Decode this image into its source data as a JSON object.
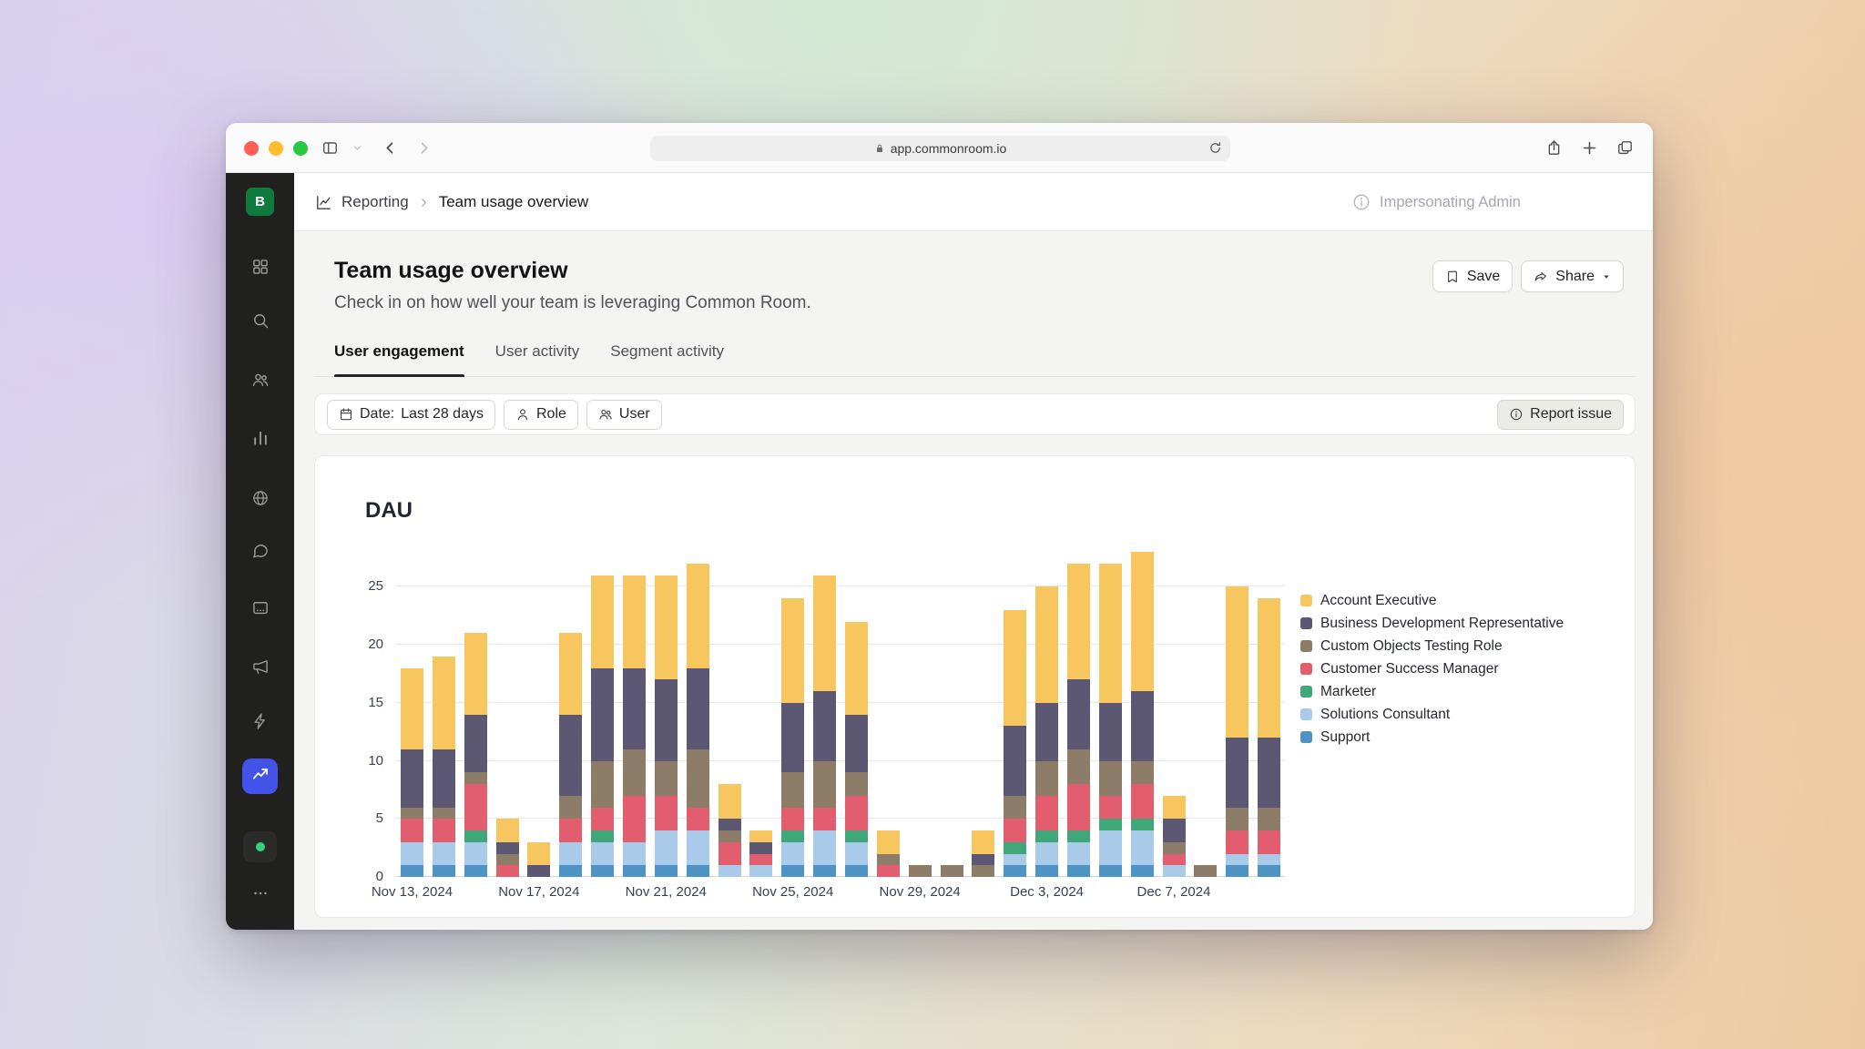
{
  "browser": {
    "url": "app.commonroom.io"
  },
  "header": {
    "breadcrumb_section": "Reporting",
    "breadcrumb_page": "Team usage overview",
    "impersonation": "Impersonating Admin"
  },
  "page": {
    "title": "Team usage overview",
    "subtitle": "Check in on how well your team is leveraging Common Room.",
    "save": "Save",
    "share": "Share"
  },
  "tabs": [
    {
      "label": "User engagement",
      "active": true
    },
    {
      "label": "User activity",
      "active": false
    },
    {
      "label": "Segment activity",
      "active": false
    }
  ],
  "filters": {
    "date_prefix": "Date:",
    "date_value": "Last 28 days",
    "role": "Role",
    "user": "User",
    "report_issue": "Report issue"
  },
  "sidebar": {
    "logo_letter": "B",
    "items": [
      {
        "name": "dashboard",
        "icon": "grid-icon",
        "active": false
      },
      {
        "name": "search",
        "icon": "search-icon",
        "active": false
      },
      {
        "name": "contacts",
        "icon": "contacts-icon",
        "active": false
      },
      {
        "name": "analytics",
        "icon": "bar-chart-icon",
        "active": false
      },
      {
        "name": "community",
        "icon": "globe-icon",
        "active": false
      },
      {
        "name": "conversations",
        "icon": "chat-icon",
        "active": false
      },
      {
        "name": "board",
        "icon": "board-icon",
        "active": false
      },
      {
        "name": "campaigns",
        "icon": "megaphone-icon",
        "active": false
      },
      {
        "name": "automations",
        "icon": "bolt-icon",
        "active": false
      },
      {
        "name": "reporting",
        "icon": "trend-icon",
        "active": true
      }
    ],
    "status_color": "#34d27b"
  },
  "chart_data": {
    "type": "bar",
    "stacked": true,
    "title": "DAU",
    "legend_position": "right",
    "grid": true,
    "ylim": [
      0,
      28
    ],
    "yticks": [
      0,
      5,
      10,
      15,
      20,
      25
    ],
    "x_tick_interval": 4,
    "x_tick_labels": [
      "Nov 13, 2024",
      "Nov 17, 2024",
      "Nov 21, 2024",
      "Nov 25, 2024",
      "Nov 29, 2024",
      "Dec 3, 2024",
      "Dec 7, 2024"
    ],
    "x": [
      "Nov 13",
      "Nov 14",
      "Nov 15",
      "Nov 16",
      "Nov 17",
      "Nov 18",
      "Nov 19",
      "Nov 20",
      "Nov 21",
      "Nov 22",
      "Nov 23",
      "Nov 24",
      "Nov 25",
      "Nov 26",
      "Nov 27",
      "Nov 28",
      "Nov 29",
      "Nov 30",
      "Dec 1",
      "Dec 2",
      "Dec 3",
      "Dec 4",
      "Dec 5",
      "Dec 6",
      "Dec 7",
      "Dec 8",
      "Dec 9",
      "Dec 10"
    ],
    "series": [
      {
        "name": "Account Executive",
        "color": "#F7C65F",
        "values": [
          7,
          8,
          7,
          2,
          2,
          7,
          8,
          8,
          9,
          9,
          3,
          1,
          9,
          10,
          8,
          2,
          0,
          0,
          2,
          10,
          10,
          10,
          12,
          12,
          2,
          0,
          13,
          12
        ]
      },
      {
        "name": "Business Development Representative",
        "color": "#5C5873",
        "values": [
          5,
          5,
          5,
          1,
          1,
          7,
          8,
          7,
          7,
          7,
          1,
          1,
          6,
          6,
          5,
          0,
          0,
          0,
          1,
          6,
          5,
          6,
          5,
          6,
          2,
          0,
          6,
          6
        ]
      },
      {
        "name": "Custom Objects Testing Role",
        "color": "#8C7C68",
        "values": [
          1,
          1,
          1,
          1,
          0,
          2,
          4,
          4,
          3,
          5,
          1,
          0,
          3,
          4,
          2,
          1,
          1,
          1,
          1,
          2,
          3,
          3,
          3,
          2,
          1,
          1,
          2,
          2
        ]
      },
      {
        "name": "Customer Success Manager",
        "color": "#E25D6E",
        "values": [
          2,
          2,
          4,
          1,
          0,
          2,
          2,
          4,
          3,
          2,
          2,
          1,
          2,
          2,
          3,
          1,
          0,
          0,
          0,
          2,
          3,
          4,
          2,
          3,
          1,
          0,
          2,
          2
        ]
      },
      {
        "name": "Marketer",
        "color": "#3FA778",
        "values": [
          0,
          0,
          1,
          0,
          0,
          0,
          1,
          0,
          0,
          0,
          0,
          0,
          1,
          0,
          1,
          0,
          0,
          0,
          0,
          1,
          1,
          1,
          1,
          1,
          0,
          0,
          0,
          0
        ]
      },
      {
        "name": "Solutions Consultant",
        "color": "#A9CBE9",
        "values": [
          2,
          2,
          2,
          0,
          0,
          2,
          2,
          2,
          3,
          3,
          1,
          1,
          2,
          3,
          2,
          0,
          0,
          0,
          0,
          1,
          2,
          2,
          3,
          3,
          1,
          0,
          1,
          1
        ]
      },
      {
        "name": "Support",
        "color": "#4D93C4",
        "values": [
          1,
          1,
          1,
          0,
          0,
          1,
          1,
          1,
          1,
          1,
          0,
          0,
          1,
          1,
          1,
          0,
          0,
          0,
          0,
          1,
          1,
          1,
          1,
          1,
          0,
          0,
          1,
          1
        ]
      }
    ],
    "stack_order": "legend_reversed_bottom_to_top"
  }
}
